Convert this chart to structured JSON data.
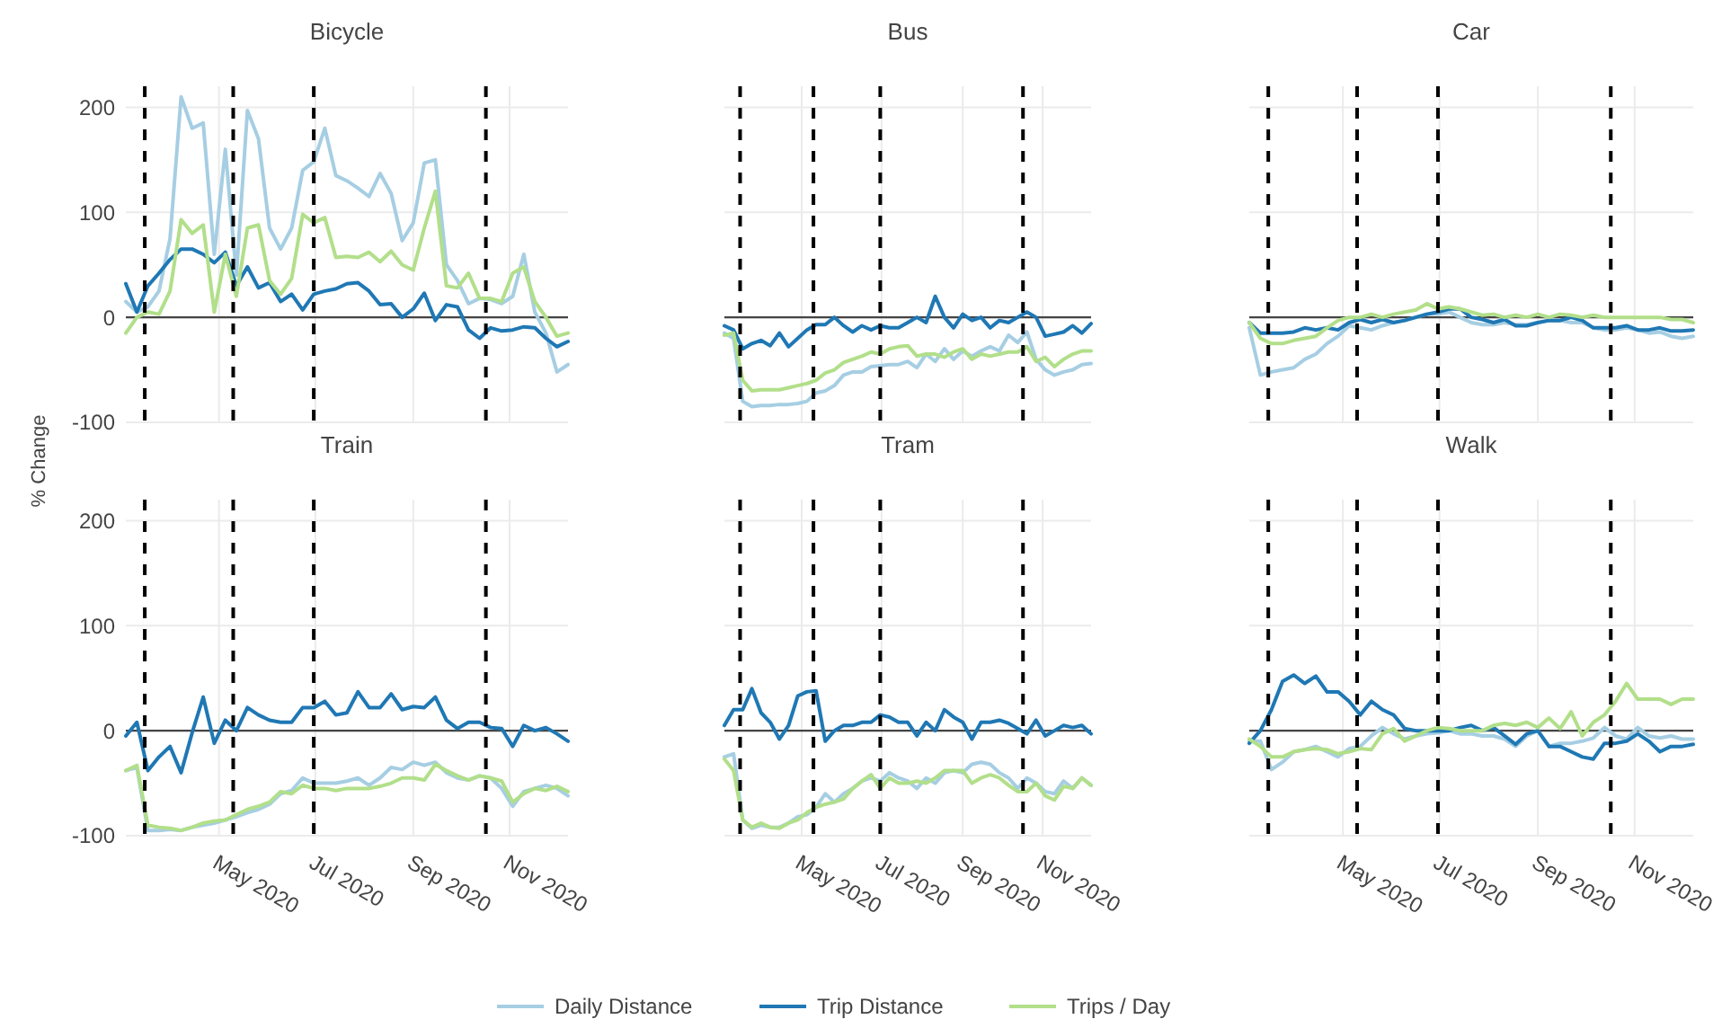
{
  "chart_data": [
    {
      "type": "line",
      "title": "Bicycle",
      "x": [
        "2020-03-03",
        "2020-03-10",
        "2020-03-17",
        "2020-03-24",
        "2020-03-31",
        "2020-04-07",
        "2020-04-14",
        "2020-04-21",
        "2020-04-28",
        "2020-05-05",
        "2020-05-12",
        "2020-05-19",
        "2020-05-26",
        "2020-06-02",
        "2020-06-09",
        "2020-06-16",
        "2020-06-23",
        "2020-06-30",
        "2020-07-07",
        "2020-07-14",
        "2020-07-21",
        "2020-07-28",
        "2020-08-04",
        "2020-08-11",
        "2020-08-18",
        "2020-08-25",
        "2020-09-01",
        "2020-09-08",
        "2020-09-15",
        "2020-09-22",
        "2020-09-29",
        "2020-10-06",
        "2020-10-13",
        "2020-10-20",
        "2020-10-27",
        "2020-11-03",
        "2020-11-10",
        "2020-11-17",
        "2020-11-24",
        "2020-12-01",
        "2020-12-08"
      ],
      "xlim": [
        "2020-03-03",
        "2020-12-08"
      ],
      "xticks": [
        {
          "value": "2020-05-01",
          "label": null
        },
        {
          "value": "2020-07-01",
          "label": null
        },
        {
          "value": "2020-09-01",
          "label": null
        },
        {
          "value": "2020-11-01",
          "label": null
        }
      ],
      "ylim": [
        -100,
        220
      ],
      "yticks": [
        -100,
        0,
        100,
        200
      ],
      "grid": true,
      "tick_labels": "y",
      "line_style": "solid",
      "marker": "none",
      "ref_lines": [
        {
          "axis": "y",
          "value": 0,
          "color": "#444444",
          "line_style": "solid"
        },
        {
          "axis": "x",
          "value": "2020-03-15",
          "color": "#000000",
          "line_style": "dashed"
        },
        {
          "axis": "x",
          "value": "2020-05-10",
          "color": "#000000",
          "line_style": "dashed"
        },
        {
          "axis": "x",
          "value": "2020-06-30",
          "color": "#000000",
          "line_style": "dashed"
        },
        {
          "axis": "x",
          "value": "2020-10-17",
          "color": "#000000",
          "line_style": "dashed"
        }
      ],
      "series": [
        {
          "color": "#a6cee3",
          "values": [
            15,
            5,
            10,
            25,
            75,
            210,
            180,
            185,
            60,
            160,
            40,
            197,
            170,
            85,
            65,
            85,
            140,
            148,
            180,
            135,
            130,
            123,
            115,
            137,
            118,
            73,
            90,
            147,
            150,
            50,
            35,
            13,
            18,
            17,
            13,
            20,
            60,
            5,
            -15,
            -52,
            -45
          ]
        },
        {
          "color": "#1f78b4",
          "values": [
            32,
            5,
            30,
            42,
            55,
            65,
            65,
            60,
            52,
            62,
            30,
            48,
            28,
            33,
            15,
            22,
            7,
            22,
            25,
            27,
            32,
            33,
            25,
            12,
            13,
            0,
            8,
            23,
            -3,
            12,
            10,
            -12,
            -20,
            -10,
            -13,
            -12,
            -9,
            -10,
            -20,
            -28,
            -23
          ]
        },
        {
          "color": "#b2df8a",
          "values": [
            -15,
            0,
            5,
            3,
            25,
            93,
            80,
            88,
            5,
            60,
            20,
            85,
            88,
            35,
            22,
            37,
            98,
            90,
            95,
            57,
            58,
            57,
            62,
            53,
            63,
            50,
            45,
            85,
            120,
            30,
            28,
            42,
            18,
            18,
            15,
            42,
            48,
            15,
            0,
            -18,
            -15
          ]
        }
      ]
    },
    {
      "type": "line",
      "title": "Bus",
      "x": [
        "2020-03-03",
        "2020-03-10",
        "2020-03-17",
        "2020-03-24",
        "2020-03-31",
        "2020-04-07",
        "2020-04-14",
        "2020-04-21",
        "2020-04-28",
        "2020-05-05",
        "2020-05-12",
        "2020-05-19",
        "2020-05-26",
        "2020-06-02",
        "2020-06-09",
        "2020-06-16",
        "2020-06-23",
        "2020-06-30",
        "2020-07-07",
        "2020-07-14",
        "2020-07-21",
        "2020-07-28",
        "2020-08-04",
        "2020-08-11",
        "2020-08-18",
        "2020-08-25",
        "2020-09-01",
        "2020-09-08",
        "2020-09-15",
        "2020-09-22",
        "2020-09-29",
        "2020-10-06",
        "2020-10-13",
        "2020-10-20",
        "2020-10-27",
        "2020-11-03",
        "2020-11-10",
        "2020-11-17",
        "2020-11-24",
        "2020-12-01",
        "2020-12-08"
      ],
      "xlim": [
        "2020-03-03",
        "2020-12-08"
      ],
      "xticks": [
        {
          "value": "2020-05-01",
          "label": null
        },
        {
          "value": "2020-07-01",
          "label": null
        },
        {
          "value": "2020-09-01",
          "label": null
        },
        {
          "value": "2020-11-01",
          "label": null
        }
      ],
      "ylim": [
        -100,
        220
      ],
      "yticks": [
        -100,
        0,
        100,
        200
      ],
      "grid": true,
      "tick_labels": false,
      "line_style": "solid",
      "marker": "none",
      "ref_lines": [
        {
          "axis": "y",
          "value": 0,
          "color": "#444444",
          "line_style": "solid"
        },
        {
          "axis": "x",
          "value": "2020-03-15",
          "color": "#000000",
          "line_style": "dashed"
        },
        {
          "axis": "x",
          "value": "2020-05-10",
          "color": "#000000",
          "line_style": "dashed"
        },
        {
          "axis": "x",
          "value": "2020-06-30",
          "color": "#000000",
          "line_style": "dashed"
        },
        {
          "axis": "x",
          "value": "2020-10-17",
          "color": "#000000",
          "line_style": "dashed"
        }
      ],
      "series": [
        {
          "color": "#a6cee3",
          "values": [
            -15,
            -20,
            -80,
            -85,
            -84,
            -84,
            -83,
            -83,
            -82,
            -80,
            -72,
            -70,
            -65,
            -55,
            -52,
            -52,
            -47,
            -46,
            -45,
            -45,
            -42,
            -48,
            -35,
            -42,
            -30,
            -40,
            -32,
            -37,
            -32,
            -28,
            -32,
            -17,
            -24,
            -14,
            -40,
            -50,
            -55,
            -52,
            -50,
            -45,
            -44
          ]
        },
        {
          "color": "#1f78b4",
          "values": [
            -8,
            -12,
            -30,
            -25,
            -22,
            -27,
            -15,
            -28,
            -20,
            -12,
            -7,
            -7,
            0,
            -8,
            -14,
            -8,
            -12,
            -8,
            -10,
            -10,
            -5,
            0,
            -5,
            20,
            0,
            -10,
            3,
            -3,
            0,
            -10,
            -3,
            -5,
            0,
            5,
            0,
            -18,
            -16,
            -14,
            -8,
            -15,
            -6
          ]
        },
        {
          "color": "#b2df8a",
          "values": [
            -17,
            -15,
            -60,
            -70,
            -69,
            -69,
            -69,
            -67,
            -65,
            -63,
            -60,
            -53,
            -50,
            -43,
            -40,
            -37,
            -33,
            -35,
            -30,
            -28,
            -27,
            -37,
            -35,
            -35,
            -38,
            -33,
            -30,
            -40,
            -35,
            -37,
            -35,
            -33,
            -33,
            -28,
            -42,
            -38,
            -47,
            -40,
            -35,
            -32,
            -32
          ]
        }
      ]
    },
    {
      "type": "line",
      "title": "Car",
      "x": [
        "2020-03-03",
        "2020-03-10",
        "2020-03-17",
        "2020-03-24",
        "2020-03-31",
        "2020-04-07",
        "2020-04-14",
        "2020-04-21",
        "2020-04-28",
        "2020-05-05",
        "2020-05-12",
        "2020-05-19",
        "2020-05-26",
        "2020-06-02",
        "2020-06-09",
        "2020-06-16",
        "2020-06-23",
        "2020-06-30",
        "2020-07-07",
        "2020-07-14",
        "2020-07-21",
        "2020-07-28",
        "2020-08-04",
        "2020-08-11",
        "2020-08-18",
        "2020-08-25",
        "2020-09-01",
        "2020-09-08",
        "2020-09-15",
        "2020-09-22",
        "2020-09-29",
        "2020-10-06",
        "2020-10-13",
        "2020-10-20",
        "2020-10-27",
        "2020-11-03",
        "2020-11-10",
        "2020-11-17",
        "2020-11-24",
        "2020-12-01",
        "2020-12-08"
      ],
      "xlim": [
        "2020-03-03",
        "2020-12-08"
      ],
      "xticks": [
        {
          "value": "2020-05-01",
          "label": null
        },
        {
          "value": "2020-07-01",
          "label": null
        },
        {
          "value": "2020-09-01",
          "label": null
        },
        {
          "value": "2020-11-01",
          "label": null
        }
      ],
      "ylim": [
        -100,
        220
      ],
      "yticks": [
        -100,
        0,
        100,
        200
      ],
      "grid": true,
      "tick_labels": false,
      "line_style": "solid",
      "marker": "none",
      "ref_lines": [
        {
          "axis": "y",
          "value": 0,
          "color": "#444444",
          "line_style": "solid"
        },
        {
          "axis": "x",
          "value": "2020-03-15",
          "color": "#000000",
          "line_style": "dashed"
        },
        {
          "axis": "x",
          "value": "2020-05-10",
          "color": "#000000",
          "line_style": "dashed"
        },
        {
          "axis": "x",
          "value": "2020-06-30",
          "color": "#000000",
          "line_style": "dashed"
        },
        {
          "axis": "x",
          "value": "2020-10-17",
          "color": "#000000",
          "line_style": "dashed"
        }
      ],
      "series": [
        {
          "color": "#a6cee3",
          "values": [
            -10,
            -55,
            -52,
            -50,
            -48,
            -40,
            -35,
            -25,
            -18,
            -8,
            -10,
            -12,
            -8,
            -5,
            -3,
            0,
            3,
            3,
            5,
            0,
            -5,
            -7,
            -7,
            -5,
            -7,
            -7,
            -5,
            -3,
            -3,
            -5,
            -5,
            -10,
            -12,
            -12,
            -10,
            -12,
            -15,
            -14,
            -18,
            -20,
            -18
          ]
        },
        {
          "color": "#1f78b4",
          "values": [
            -5,
            -15,
            -15,
            -15,
            -14,
            -10,
            -12,
            -10,
            -12,
            -5,
            -2,
            -5,
            -2,
            -5,
            -3,
            0,
            3,
            5,
            8,
            8,
            0,
            -2,
            -5,
            -2,
            -8,
            -8,
            -5,
            -3,
            -3,
            0,
            -3,
            -10,
            -10,
            -10,
            -8,
            -12,
            -12,
            -10,
            -13,
            -13,
            -12
          ]
        },
        {
          "color": "#b2df8a",
          "values": [
            -5,
            -20,
            -25,
            -25,
            -22,
            -20,
            -18,
            -10,
            -3,
            0,
            0,
            3,
            0,
            3,
            5,
            7,
            13,
            8,
            10,
            8,
            5,
            2,
            3,
            0,
            2,
            0,
            3,
            0,
            3,
            2,
            0,
            2,
            0,
            0,
            0,
            0,
            0,
            0,
            -2,
            -2,
            -5
          ]
        }
      ]
    },
    {
      "type": "line",
      "title": "Train",
      "ylabel": "% Change",
      "x": [
        "2020-03-03",
        "2020-03-10",
        "2020-03-17",
        "2020-03-24",
        "2020-03-31",
        "2020-04-07",
        "2020-04-14",
        "2020-04-21",
        "2020-04-28",
        "2020-05-05",
        "2020-05-12",
        "2020-05-19",
        "2020-05-26",
        "2020-06-02",
        "2020-06-09",
        "2020-06-16",
        "2020-06-23",
        "2020-06-30",
        "2020-07-07",
        "2020-07-14",
        "2020-07-21",
        "2020-07-28",
        "2020-08-04",
        "2020-08-11",
        "2020-08-18",
        "2020-08-25",
        "2020-09-01",
        "2020-09-08",
        "2020-09-15",
        "2020-09-22",
        "2020-09-29",
        "2020-10-06",
        "2020-10-13",
        "2020-10-20",
        "2020-10-27",
        "2020-11-03",
        "2020-11-10",
        "2020-11-17",
        "2020-11-24",
        "2020-12-01",
        "2020-12-08"
      ],
      "xlim": [
        "2020-03-03",
        "2020-12-08"
      ],
      "xticks": [
        {
          "value": "2020-05-01",
          "label": "May 2020"
        },
        {
          "value": "2020-07-01",
          "label": "Jul 2020"
        },
        {
          "value": "2020-09-01",
          "label": "Sep 2020"
        },
        {
          "value": "2020-11-01",
          "label": "Nov 2020"
        }
      ],
      "ylim": [
        -100,
        220
      ],
      "yticks": [
        -100,
        0,
        100,
        200
      ],
      "grid": true,
      "line_style": "solid",
      "marker": "none",
      "ref_lines": [
        {
          "axis": "y",
          "value": 0,
          "color": "#444444",
          "line_style": "solid"
        },
        {
          "axis": "x",
          "value": "2020-03-15",
          "color": "#000000",
          "line_style": "dashed"
        },
        {
          "axis": "x",
          "value": "2020-05-10",
          "color": "#000000",
          "line_style": "dashed"
        },
        {
          "axis": "x",
          "value": "2020-06-30",
          "color": "#000000",
          "line_style": "dashed"
        },
        {
          "axis": "x",
          "value": "2020-10-17",
          "color": "#000000",
          "line_style": "dashed"
        }
      ],
      "series": [
        {
          "color": "#a6cee3",
          "values": [
            -38,
            -35,
            -95,
            -95,
            -94,
            -95,
            -92,
            -90,
            -88,
            -85,
            -82,
            -78,
            -75,
            -70,
            -60,
            -57,
            -45,
            -50,
            -50,
            -50,
            -48,
            -45,
            -52,
            -45,
            -35,
            -37,
            -30,
            -33,
            -30,
            -40,
            -45,
            -47,
            -43,
            -45,
            -55,
            -72,
            -58,
            -55,
            -52,
            -55,
            -62
          ]
        },
        {
          "color": "#1f78b4",
          "values": [
            -5,
            8,
            -38,
            -25,
            -15,
            -40,
            -2,
            32,
            -12,
            10,
            0,
            22,
            15,
            10,
            8,
            8,
            22,
            22,
            28,
            15,
            17,
            37,
            22,
            22,
            35,
            20,
            23,
            22,
            32,
            10,
            2,
            8,
            8,
            3,
            2,
            -15,
            5,
            0,
            3,
            -3,
            -10
          ]
        },
        {
          "color": "#b2df8a",
          "values": [
            -38,
            -33,
            -90,
            -92,
            -93,
            -95,
            -92,
            -88,
            -86,
            -85,
            -80,
            -75,
            -72,
            -68,
            -58,
            -60,
            -52,
            -55,
            -55,
            -57,
            -55,
            -55,
            -55,
            -53,
            -50,
            -45,
            -45,
            -47,
            -32,
            -38,
            -43,
            -47,
            -43,
            -45,
            -48,
            -68,
            -60,
            -55,
            -57,
            -53,
            -58
          ]
        }
      ]
    },
    {
      "type": "line",
      "title": "Tram",
      "x": [
        "2020-03-03",
        "2020-03-10",
        "2020-03-17",
        "2020-03-24",
        "2020-03-31",
        "2020-04-07",
        "2020-04-14",
        "2020-04-21",
        "2020-04-28",
        "2020-05-05",
        "2020-05-12",
        "2020-05-19",
        "2020-05-26",
        "2020-06-02",
        "2020-06-09",
        "2020-06-16",
        "2020-06-23",
        "2020-06-30",
        "2020-07-07",
        "2020-07-14",
        "2020-07-21",
        "2020-07-28",
        "2020-08-04",
        "2020-08-11",
        "2020-08-18",
        "2020-08-25",
        "2020-09-01",
        "2020-09-08",
        "2020-09-15",
        "2020-09-22",
        "2020-09-29",
        "2020-10-06",
        "2020-10-13",
        "2020-10-20",
        "2020-10-27",
        "2020-11-03",
        "2020-11-10",
        "2020-11-17",
        "2020-11-24",
        "2020-12-01",
        "2020-12-08"
      ],
      "xlim": [
        "2020-03-03",
        "2020-12-08"
      ],
      "xticks": [
        {
          "value": "2020-05-01",
          "label": "May 2020"
        },
        {
          "value": "2020-07-01",
          "label": "Jul 2020"
        },
        {
          "value": "2020-09-01",
          "label": "Sep 2020"
        },
        {
          "value": "2020-11-01",
          "label": "Nov 2020"
        }
      ],
      "ylim": [
        -100,
        220
      ],
      "yticks": [
        -100,
        0,
        100,
        200
      ],
      "grid": true,
      "tick_labels": "x",
      "line_style": "solid",
      "marker": "none",
      "ref_lines": [
        {
          "axis": "y",
          "value": 0,
          "color": "#444444",
          "line_style": "solid"
        },
        {
          "axis": "x",
          "value": "2020-03-15",
          "color": "#000000",
          "line_style": "dashed"
        },
        {
          "axis": "x",
          "value": "2020-05-10",
          "color": "#000000",
          "line_style": "dashed"
        },
        {
          "axis": "x",
          "value": "2020-06-30",
          "color": "#000000",
          "line_style": "dashed"
        },
        {
          "axis": "x",
          "value": "2020-10-17",
          "color": "#000000",
          "line_style": "dashed"
        }
      ],
      "series": [
        {
          "color": "#a6cee3",
          "values": [
            -25,
            -22,
            -85,
            -93,
            -90,
            -92,
            -92,
            -88,
            -82,
            -80,
            -73,
            -60,
            -68,
            -60,
            -55,
            -48,
            -45,
            -48,
            -40,
            -45,
            -48,
            -55,
            -45,
            -50,
            -40,
            -38,
            -40,
            -32,
            -30,
            -32,
            -40,
            -45,
            -55,
            -45,
            -50,
            -58,
            -60,
            -48,
            -55,
            -45,
            -52
          ]
        },
        {
          "color": "#1f78b4",
          "values": [
            5,
            20,
            20,
            40,
            17,
            8,
            -8,
            5,
            33,
            37,
            38,
            -10,
            0,
            5,
            5,
            8,
            8,
            15,
            13,
            8,
            8,
            -5,
            8,
            0,
            20,
            13,
            8,
            -8,
            8,
            8,
            10,
            7,
            2,
            -3,
            10,
            -5,
            0,
            5,
            3,
            5,
            -3
          ]
        },
        {
          "color": "#b2df8a",
          "values": [
            -27,
            -38,
            -85,
            -92,
            -88,
            -92,
            -93,
            -88,
            -85,
            -78,
            -73,
            -70,
            -68,
            -65,
            -55,
            -48,
            -42,
            -55,
            -45,
            -50,
            -50,
            -48,
            -50,
            -45,
            -38,
            -38,
            -38,
            -50,
            -45,
            -42,
            -45,
            -52,
            -58,
            -58,
            -50,
            -62,
            -66,
            -53,
            -55,
            -45,
            -52
          ]
        }
      ]
    },
    {
      "type": "line",
      "title": "Walk",
      "legend": "bottom",
      "x": [
        "2020-03-03",
        "2020-03-10",
        "2020-03-17",
        "2020-03-24",
        "2020-03-31",
        "2020-04-07",
        "2020-04-14",
        "2020-04-21",
        "2020-04-28",
        "2020-05-05",
        "2020-05-12",
        "2020-05-19",
        "2020-05-26",
        "2020-06-02",
        "2020-06-09",
        "2020-06-16",
        "2020-06-23",
        "2020-06-30",
        "2020-07-07",
        "2020-07-14",
        "2020-07-21",
        "2020-07-28",
        "2020-08-04",
        "2020-08-11",
        "2020-08-18",
        "2020-08-25",
        "2020-09-01",
        "2020-09-08",
        "2020-09-15",
        "2020-09-22",
        "2020-09-29",
        "2020-10-06",
        "2020-10-13",
        "2020-10-20",
        "2020-10-27",
        "2020-11-03",
        "2020-11-10",
        "2020-11-17",
        "2020-11-24",
        "2020-12-01",
        "2020-12-08"
      ],
      "xlim": [
        "2020-03-03",
        "2020-12-08"
      ],
      "xticks": [
        {
          "value": "2020-05-01",
          "label": "May 2020"
        },
        {
          "value": "2020-07-01",
          "label": "Jul 2020"
        },
        {
          "value": "2020-09-01",
          "label": "Sep 2020"
        },
        {
          "value": "2020-11-01",
          "label": "Nov 2020"
        }
      ],
      "ylim": [
        -100,
        220
      ],
      "yticks": [
        -100,
        0,
        100,
        200
      ],
      "grid": true,
      "tick_labels": "x",
      "line_style": "solid",
      "marker": "none",
      "ref_lines": [
        {
          "axis": "y",
          "value": 0,
          "color": "#444444",
          "line_style": "solid"
        },
        {
          "axis": "x",
          "value": "2020-03-15",
          "color": "#000000",
          "line_style": "dashed"
        },
        {
          "axis": "x",
          "value": "2020-05-10",
          "color": "#000000",
          "line_style": "dashed"
        },
        {
          "axis": "x",
          "value": "2020-06-30",
          "color": "#000000",
          "line_style": "dashed"
        },
        {
          "axis": "x",
          "value": "2020-10-17",
          "color": "#000000",
          "line_style": "dashed"
        }
      ],
      "series": [
        {
          "name": "Daily Distance",
          "color": "#a6cee3",
          "values": [
            -10,
            -10,
            -37,
            -30,
            -20,
            -18,
            -15,
            -20,
            -25,
            -17,
            -15,
            -5,
            3,
            -3,
            -8,
            -5,
            -3,
            -2,
            0,
            -3,
            -3,
            -5,
            -5,
            -8,
            -15,
            -5,
            0,
            -15,
            -12,
            -12,
            -10,
            -7,
            3,
            -5,
            -8,
            3,
            -5,
            -7,
            -5,
            -8,
            -8
          ]
        },
        {
          "name": "Trip Distance",
          "color": "#1f78b4",
          "values": [
            -12,
            0,
            20,
            47,
            53,
            45,
            52,
            37,
            37,
            28,
            15,
            28,
            20,
            15,
            2,
            0,
            0,
            0,
            0,
            3,
            5,
            0,
            3,
            -5,
            -13,
            -3,
            0,
            -15,
            -15,
            -20,
            -25,
            -27,
            -12,
            -12,
            -10,
            -3,
            -10,
            -20,
            -15,
            -15,
            -13
          ]
        },
        {
          "name": "Trips / Day",
          "color": "#b2df8a",
          "values": [
            -8,
            -15,
            -25,
            -25,
            -20,
            -18,
            -17,
            -18,
            -22,
            -20,
            -17,
            -18,
            -3,
            2,
            -10,
            -5,
            0,
            3,
            2,
            0,
            0,
            0,
            5,
            7,
            5,
            8,
            3,
            12,
            2,
            18,
            -5,
            8,
            15,
            28,
            45,
            30,
            30,
            30,
            25,
            30,
            30
          ]
        }
      ]
    }
  ]
}
